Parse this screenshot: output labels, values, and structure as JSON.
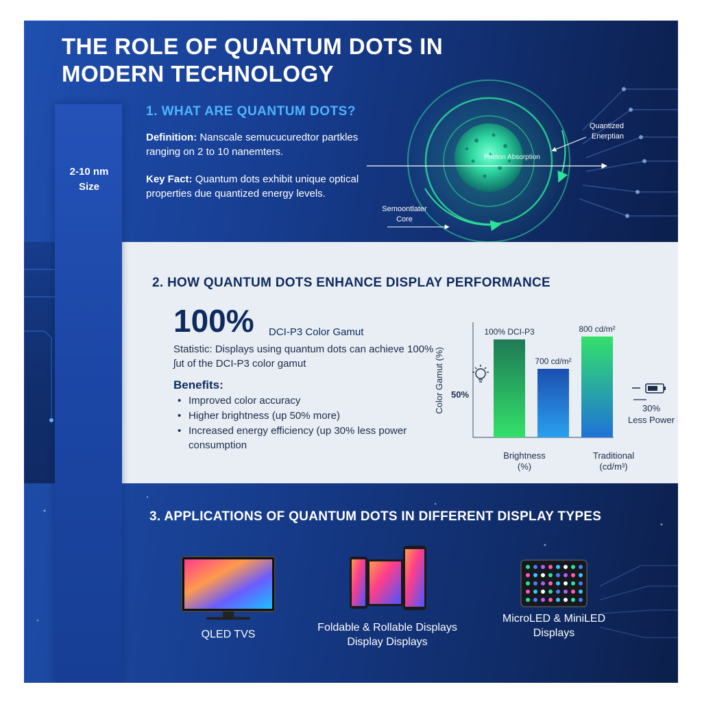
{
  "title": "THE ROLE OF QUANTUM DOTS IN MODERN TECHNOLOGY",
  "section1": {
    "heading": "1. WHAT ARE QUANTUM DOTS?",
    "definition_label": "Definition:",
    "definition_text": "Nanscale semucucuredtor partkles ranging on 2 to 10 nanemters.",
    "keyfact_label": "Key Fact:",
    "keyfact_text": "Quantum dots exhibit unique optical properties due quantized energy levels.",
    "size_line1": "2-10 nm",
    "size_line2": "Size",
    "diagram": {
      "photon_label": "Photon Absorption",
      "quantized_line1": "Quantized",
      "quantized_line2": "Enerptian",
      "core_line1": "Semoontlater",
      "core_line2": "Core"
    }
  },
  "section2": {
    "heading": "2. HOW QUANTUM DOTS ENHANCE DISPLAY PERFORMANCE",
    "big_value": "100%",
    "big_label": "DCI-P3 Color Gamut",
    "statistic_text": "Statistic: Displays using quantum dots can achieve 100% ʃut of the DCI-P3 color gamut",
    "benefits_title": "Benefits:",
    "benefits": [
      "Improved color accuracy",
      "Higher brightness (up 50% more)",
      "Increased energy efficiency (up 30% less power consumption"
    ]
  },
  "chart_data": {
    "type": "bar",
    "ylabel": "Color Gamut (%)",
    "y_annotation": "50%",
    "bars": [
      {
        "label": "100% DCI-P3",
        "value": 100,
        "color_top": "#1f7a55",
        "color_bottom": "#33e06a"
      },
      {
        "label": "700 cd/m²",
        "value": 70,
        "color_top": "#1c4fb0",
        "color_bottom": "#2aa0ee"
      },
      {
        "label": "800 cd/m²",
        "value": 103,
        "color_top": "#33e06a",
        "color_bottom": "#1f72d8"
      }
    ],
    "x_labels": [
      {
        "line1": "Brightness",
        "line2": "(%)"
      },
      {
        "line1": "Traditional",
        "line2": "(cd/m³)"
      }
    ],
    "power_label_line1": "30%",
    "power_label_line2": "Less Power"
  },
  "section3": {
    "heading": "3. APPLICATIONS OF QUANTUM DOTS IN DIFFERENT DISPLAY TYPES",
    "apps": [
      {
        "line1": "QLED TVS",
        "line2": ""
      },
      {
        "line1": "Foldable & Rollable Displays",
        "line2": "Display Displays"
      },
      {
        "line1": "MicroLED & MiniLED",
        "line2": "Displays"
      }
    ]
  },
  "colors": {
    "dark_blue": "#0f2a5e",
    "accent_blue": "#4fb3ff",
    "quantum_green": "#2fe29a",
    "bar_green": "#33e06a",
    "bar_blue": "#2a7fe0"
  }
}
